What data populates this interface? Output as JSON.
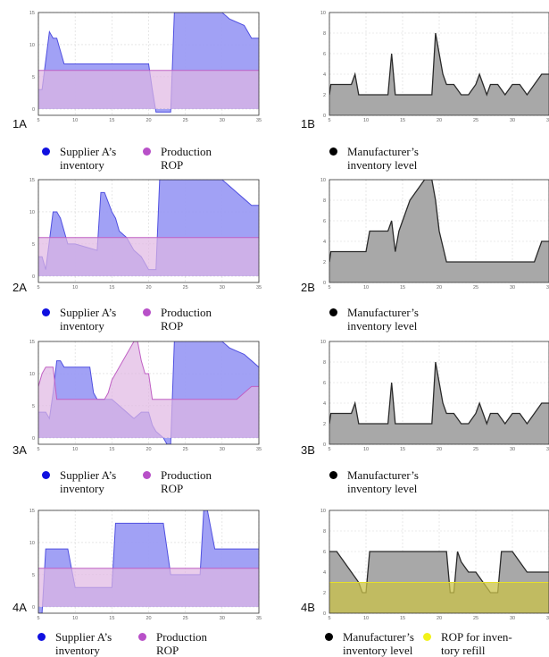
{
  "colors": {
    "supplier_fill": "#9c9cf4",
    "supplier_line": "#5050e0",
    "rop_fill": "#e0b6e2",
    "rop_line": "#c060c4",
    "overlap_fill": "#9d7ede",
    "manufacturer_fill": "#a8a8a8",
    "manufacturer_line": "#2a2a2a",
    "refill_fill": "#c9c24a",
    "refill_line": "#e6e02a",
    "dot_supplier": "#1010e0",
    "dot_rop": "#b850c8",
    "dot_manufacturer": "#000000",
    "dot_refill": "#f2f21a"
  },
  "legends": {
    "supplier": "Supplier A’s\ninventory",
    "production_rop": "Production\nROP",
    "manufacturer": "Manufacturer’s\ninventory level",
    "rop_refill": "ROP for inven-\ntory refill"
  },
  "chart_data": [
    {
      "id": "1A",
      "label": "1A",
      "type": "area",
      "xlim": [
        5,
        35
      ],
      "ylim": [
        -1,
        15
      ],
      "xticks": [
        5,
        10,
        15,
        20,
        25,
        30,
        35
      ],
      "yticks": [
        0,
        5,
        10,
        15
      ],
      "grid": true,
      "series": [
        {
          "name": "Supplier A’s inventory",
          "role": "supplier",
          "x": [
            5,
            5.5,
            6.5,
            7,
            7.5,
            8,
            8.5,
            20,
            20.5,
            21,
            23,
            23.5,
            25,
            30,
            31,
            33,
            34,
            35
          ],
          "y": [
            3,
            3,
            12,
            11,
            11,
            9,
            7,
            7,
            3,
            -0.5,
            -0.5,
            15,
            15,
            15,
            14,
            13,
            11,
            11
          ]
        },
        {
          "name": "Production ROP",
          "role": "rop",
          "x": [
            5,
            35
          ],
          "y": [
            6,
            6
          ]
        }
      ]
    },
    {
      "id": "1B",
      "label": "1B",
      "type": "area",
      "xlim": [
        5,
        35
      ],
      "ylim": [
        0,
        10
      ],
      "xticks": [
        5,
        10,
        15,
        20,
        25,
        30,
        35
      ],
      "yticks": [
        0,
        2,
        4,
        6,
        8,
        10
      ],
      "grid": true,
      "series": [
        {
          "name": "Manufacturer’s inventory level",
          "role": "manufacturer",
          "x": [
            5,
            5.2,
            8,
            8.5,
            9,
            13,
            13.5,
            14,
            19,
            19.5,
            20,
            20.5,
            21,
            22,
            23,
            24,
            25,
            25.5,
            26,
            26.5,
            27,
            28,
            29,
            30,
            31,
            32,
            33,
            34,
            35
          ],
          "y": [
            2,
            3,
            3,
            4,
            2,
            2,
            6,
            2,
            2,
            8,
            6,
            4,
            3,
            3,
            2,
            2,
            3,
            4,
            3,
            2,
            3,
            3,
            2,
            3,
            3,
            2,
            3,
            4,
            4
          ]
        }
      ]
    },
    {
      "id": "2A",
      "label": "2A",
      "type": "area",
      "xlim": [
        5,
        35
      ],
      "ylim": [
        -1,
        15
      ],
      "xticks": [
        5,
        10,
        15,
        20,
        25,
        30,
        35
      ],
      "yticks": [
        0,
        5,
        10,
        15
      ],
      "grid": true,
      "series": [
        {
          "name": "Supplier A’s inventory",
          "role": "supplier",
          "x": [
            5,
            5.5,
            6,
            7,
            7.5,
            8,
            8.5,
            9,
            10,
            13,
            13.5,
            14,
            15,
            15.5,
            16,
            17,
            17.5,
            18,
            19,
            20,
            21,
            21.5,
            22,
            30,
            31,
            32,
            33,
            34,
            35
          ],
          "y": [
            3,
            3,
            1,
            10,
            10,
            9,
            7,
            5,
            5,
            4,
            13,
            13,
            10,
            9,
            7,
            6,
            5,
            4,
            3,
            1,
            1,
            15,
            15,
            15,
            14,
            13,
            12,
            11,
            11
          ]
        },
        {
          "name": "Production ROP",
          "role": "rop",
          "x": [
            5,
            35
          ],
          "y": [
            6,
            6
          ]
        }
      ]
    },
    {
      "id": "2B",
      "label": "2B",
      "type": "area",
      "xlim": [
        5,
        35
      ],
      "ylim": [
        0,
        10
      ],
      "xticks": [
        5,
        10,
        15,
        20,
        25,
        30,
        35
      ],
      "yticks": [
        0,
        2,
        4,
        6,
        8,
        10
      ],
      "grid": true,
      "series": [
        {
          "name": "Manufacturer’s inventory level",
          "role": "manufacturer",
          "x": [
            5,
            5.2,
            10,
            10.5,
            13,
            13.5,
            14,
            14.5,
            15,
            16,
            17,
            18,
            19,
            19.5,
            20,
            21,
            33,
            33.5,
            34,
            35
          ],
          "y": [
            2,
            3,
            3,
            5,
            5,
            6,
            3,
            5,
            6,
            8,
            9,
            10,
            10,
            8,
            5,
            2,
            2,
            3,
            4,
            4
          ]
        }
      ]
    },
    {
      "id": "3A",
      "label": "3A",
      "type": "area",
      "xlim": [
        5,
        35
      ],
      "ylim": [
        -1,
        15
      ],
      "xticks": [
        5,
        10,
        15,
        20,
        25,
        30,
        35
      ],
      "yticks": [
        0,
        5,
        10,
        15
      ],
      "grid": true,
      "series": [
        {
          "name": "Supplier A’s inventory",
          "role": "supplier",
          "x": [
            5,
            6,
            6.5,
            7,
            7.5,
            8,
            8.5,
            12,
            12.5,
            13,
            14,
            15,
            16,
            17,
            18,
            19,
            20,
            20.5,
            21,
            22,
            22.5,
            23,
            23.5,
            30,
            31,
            33,
            34,
            35
          ],
          "y": [
            4,
            4,
            3,
            7,
            12,
            12,
            11,
            11,
            7,
            6,
            6,
            6,
            5,
            4,
            3,
            4,
            4,
            2,
            1,
            0,
            -1,
            -1,
            15,
            15,
            14,
            13,
            12,
            11
          ]
        },
        {
          "name": "Production ROP",
          "role": "rop",
          "x": [
            5,
            5.5,
            6,
            7,
            7.5,
            8,
            14,
            14.5,
            15,
            16,
            17,
            18,
            18.5,
            19,
            19.5,
            20,
            20.5,
            21,
            30,
            32,
            33,
            34,
            35
          ],
          "y": [
            8,
            10,
            11,
            11,
            6,
            6,
            6,
            7,
            9,
            11,
            13,
            15,
            15,
            12,
            10,
            10,
            6,
            6,
            6,
            6,
            7,
            8,
            8
          ]
        }
      ]
    },
    {
      "id": "3B",
      "label": "3B",
      "type": "area",
      "xlim": [
        5,
        35
      ],
      "ylim": [
        0,
        10
      ],
      "xticks": [
        5,
        10,
        15,
        20,
        25,
        30,
        35
      ],
      "yticks": [
        0,
        2,
        4,
        6,
        8,
        10
      ],
      "grid": true,
      "series": [
        {
          "name": "Manufacturer’s inventory level",
          "role": "manufacturer",
          "x": [
            5,
            5.2,
            8,
            8.5,
            9,
            13,
            13.5,
            14,
            19,
            19.5,
            20,
            20.5,
            21,
            22,
            23,
            24,
            25,
            25.5,
            26,
            26.5,
            27,
            28,
            29,
            30,
            31,
            32,
            33,
            34,
            35
          ],
          "y": [
            2,
            3,
            3,
            4,
            2,
            2,
            6,
            2,
            2,
            8,
            6,
            4,
            3,
            3,
            2,
            2,
            3,
            4,
            3,
            2,
            3,
            3,
            2,
            3,
            3,
            2,
            3,
            4,
            4
          ]
        }
      ]
    },
    {
      "id": "4A",
      "label": "4A",
      "type": "area",
      "xlim": [
        5,
        35
      ],
      "ylim": [
        -1,
        15
      ],
      "xticks": [
        5,
        10,
        15,
        20,
        25,
        30,
        35
      ],
      "yticks": [
        0,
        5,
        10,
        15
      ],
      "grid": true,
      "series": [
        {
          "name": "Supplier A’s inventory",
          "role": "supplier",
          "x": [
            5,
            5.5,
            6,
            9,
            10,
            15,
            15.5,
            22,
            23,
            27,
            27.5,
            28,
            29,
            30,
            35
          ],
          "y": [
            -1,
            -1,
            9,
            9,
            3,
            3,
            13,
            13,
            5,
            5,
            15,
            15,
            9,
            9,
            9
          ]
        },
        {
          "name": "Production ROP",
          "role": "rop",
          "x": [
            5,
            35
          ],
          "y": [
            6,
            6
          ]
        }
      ]
    },
    {
      "id": "4B",
      "label": "4B",
      "type": "area",
      "xlim": [
        5,
        35
      ],
      "ylim": [
        0,
        10
      ],
      "xticks": [
        5,
        10,
        15,
        20,
        25,
        30,
        35
      ],
      "yticks": [
        0,
        2,
        4,
        6,
        8,
        10
      ],
      "grid": true,
      "series": [
        {
          "name": "Manufacturer’s inventory level",
          "role": "manufacturer",
          "x": [
            5,
            6,
            7,
            8,
            9,
            9.5,
            10,
            10.5,
            21,
            21.5,
            22,
            22.5,
            23,
            24,
            25,
            26,
            27,
            27.5,
            28,
            28.5,
            30,
            31,
            32,
            33,
            34,
            35
          ],
          "y": [
            6,
            6,
            5,
            4,
            3,
            2,
            2,
            6,
            6,
            2,
            2,
            6,
            5,
            4,
            4,
            3,
            2,
            2,
            2,
            6,
            6,
            5,
            4,
            4,
            4,
            4
          ]
        },
        {
          "name": "ROP for inventory refill",
          "role": "refill",
          "x": [
            5,
            35
          ],
          "y": [
            3,
            3
          ]
        }
      ]
    }
  ]
}
